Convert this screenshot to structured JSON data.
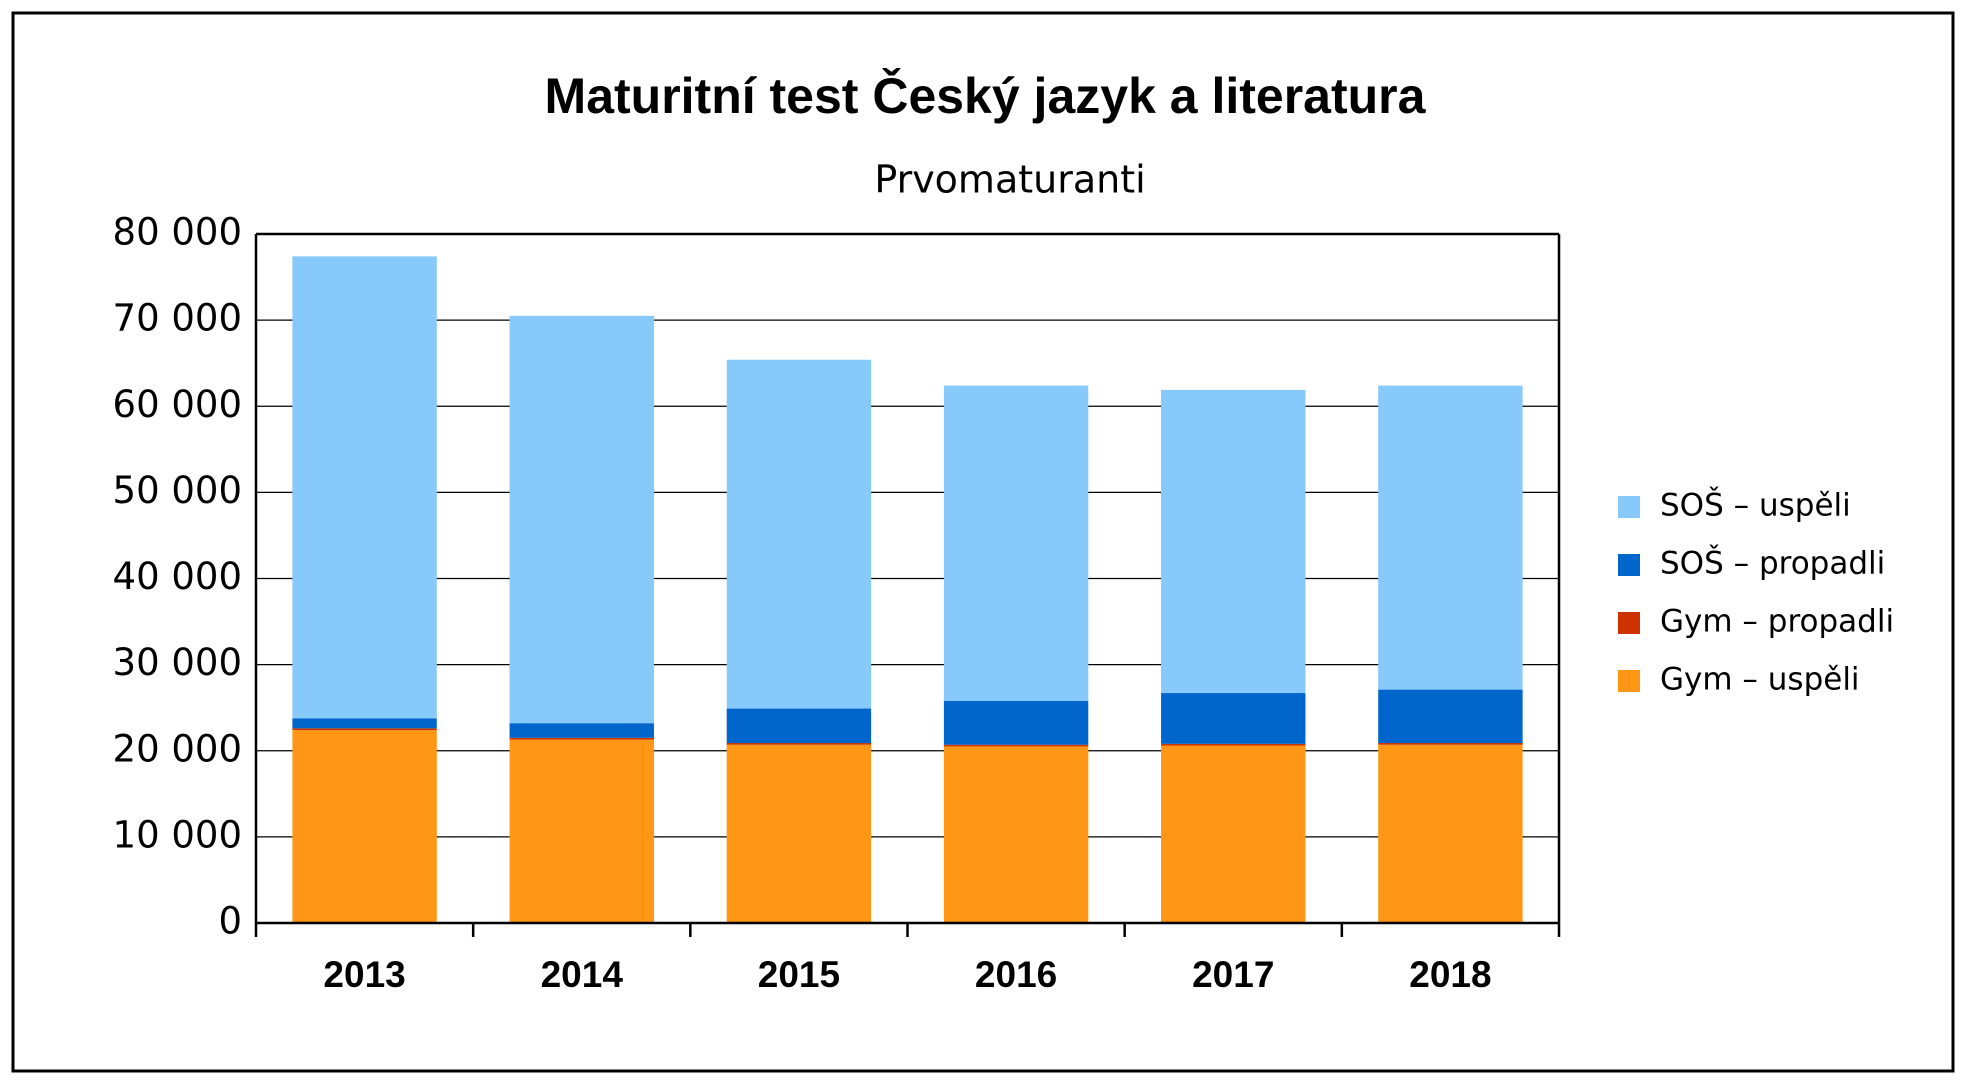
{
  "chart_data": {
    "type": "stacked_bar",
    "title": "Maturitní test Český jazyk a literatura",
    "subtitle": "Prvomaturanti",
    "categories": [
      "2013",
      "2014",
      "2015",
      "2016",
      "2017",
      "2018"
    ],
    "series": [
      {
        "name": "Gym – uspěli",
        "color": "#ff9615",
        "values": [
          22400,
          21300,
          20700,
          20500,
          20600,
          20700
        ]
      },
      {
        "name": "Gym – propadli",
        "color": "#cc3300",
        "values": [
          200,
          200,
          200,
          200,
          200,
          200
        ]
      },
      {
        "name": "SOŠ – propadli",
        "color": "#0066cc",
        "values": [
          1150,
          1700,
          4000,
          5100,
          5900,
          6200
        ]
      },
      {
        "name": "SOŠ – uspěli",
        "color": "#87c9fb",
        "values": [
          53650,
          47300,
          40500,
          36600,
          35200,
          35300
        ]
      }
    ],
    "ylim": [
      0,
      80000
    ],
    "yticks": [
      0,
      {
        "value": 10000,
        "label": "10 000"
      },
      {
        "value": 20000,
        "label": "20 000"
      },
      {
        "value": 30000,
        "label": "30 000"
      },
      {
        "value": 40000,
        "label": "40 000"
      },
      {
        "value": 50000,
        "label": "50 000"
      },
      {
        "value": 60000,
        "label": "60 000"
      },
      {
        "value": 70000,
        "label": "70 000"
      },
      {
        "value": 80000,
        "label": "80 000"
      }
    ],
    "grid": true,
    "legend": "right"
  }
}
